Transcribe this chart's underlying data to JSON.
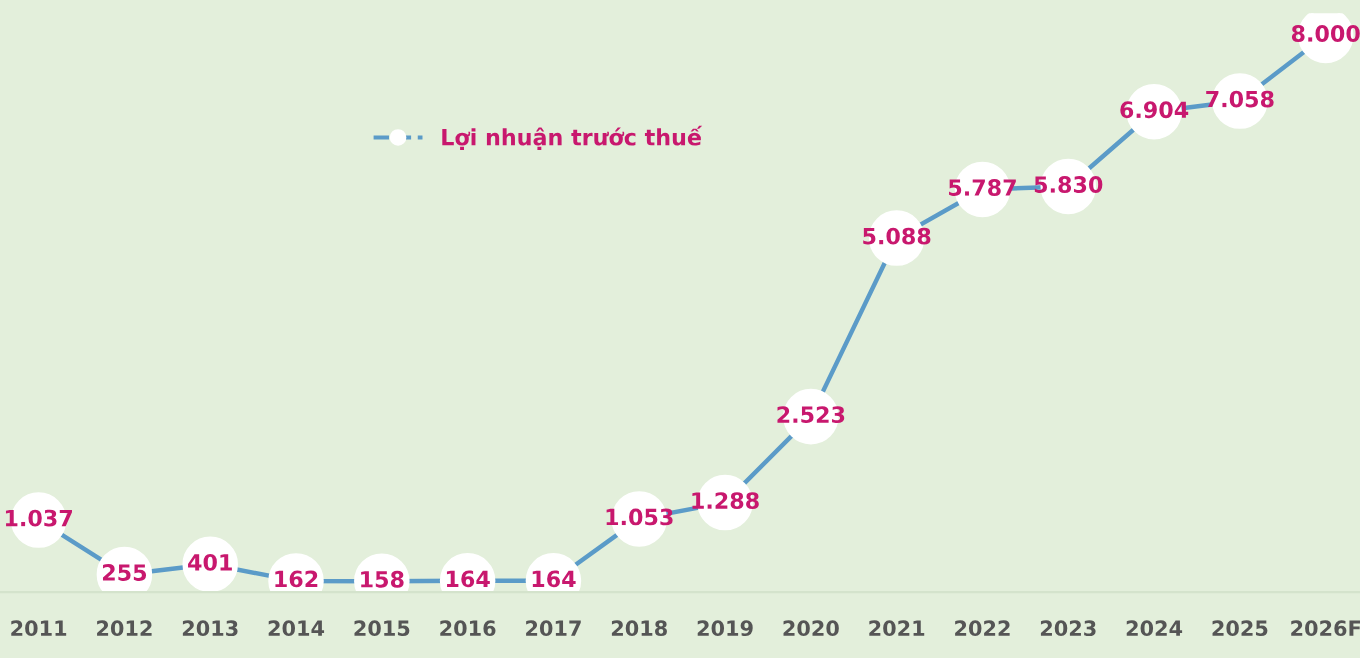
{
  "chart_data": {
    "type": "line",
    "categories": [
      "2011",
      "2012",
      "2013",
      "2014",
      "2015",
      "2016",
      "2017",
      "2018",
      "2019",
      "2020",
      "2021",
      "2022",
      "2023",
      "2024",
      "2025",
      "2026F"
    ],
    "series": [
      {
        "name": "Lợi nhuận trước thuế",
        "color": "#5b9bc8",
        "values": [
          1037,
          255,
          401,
          162,
          158,
          164,
          164,
          1053,
          1288,
          2523,
          5088,
          5787,
          5830,
          6904,
          7058,
          8000
        ],
        "value_labels": [
          "1.037",
          "255",
          "401",
          "162",
          "158",
          "164",
          "164",
          "1.053",
          "1.288",
          "2.523",
          "5.088",
          "5.787",
          "5.830",
          "6.904",
          "7.058",
          "8.000"
        ]
      }
    ],
    "marker": "circle",
    "line_style": "solid",
    "legend": "top left",
    "grid": false,
    "tick_labels": "x"
  }
}
